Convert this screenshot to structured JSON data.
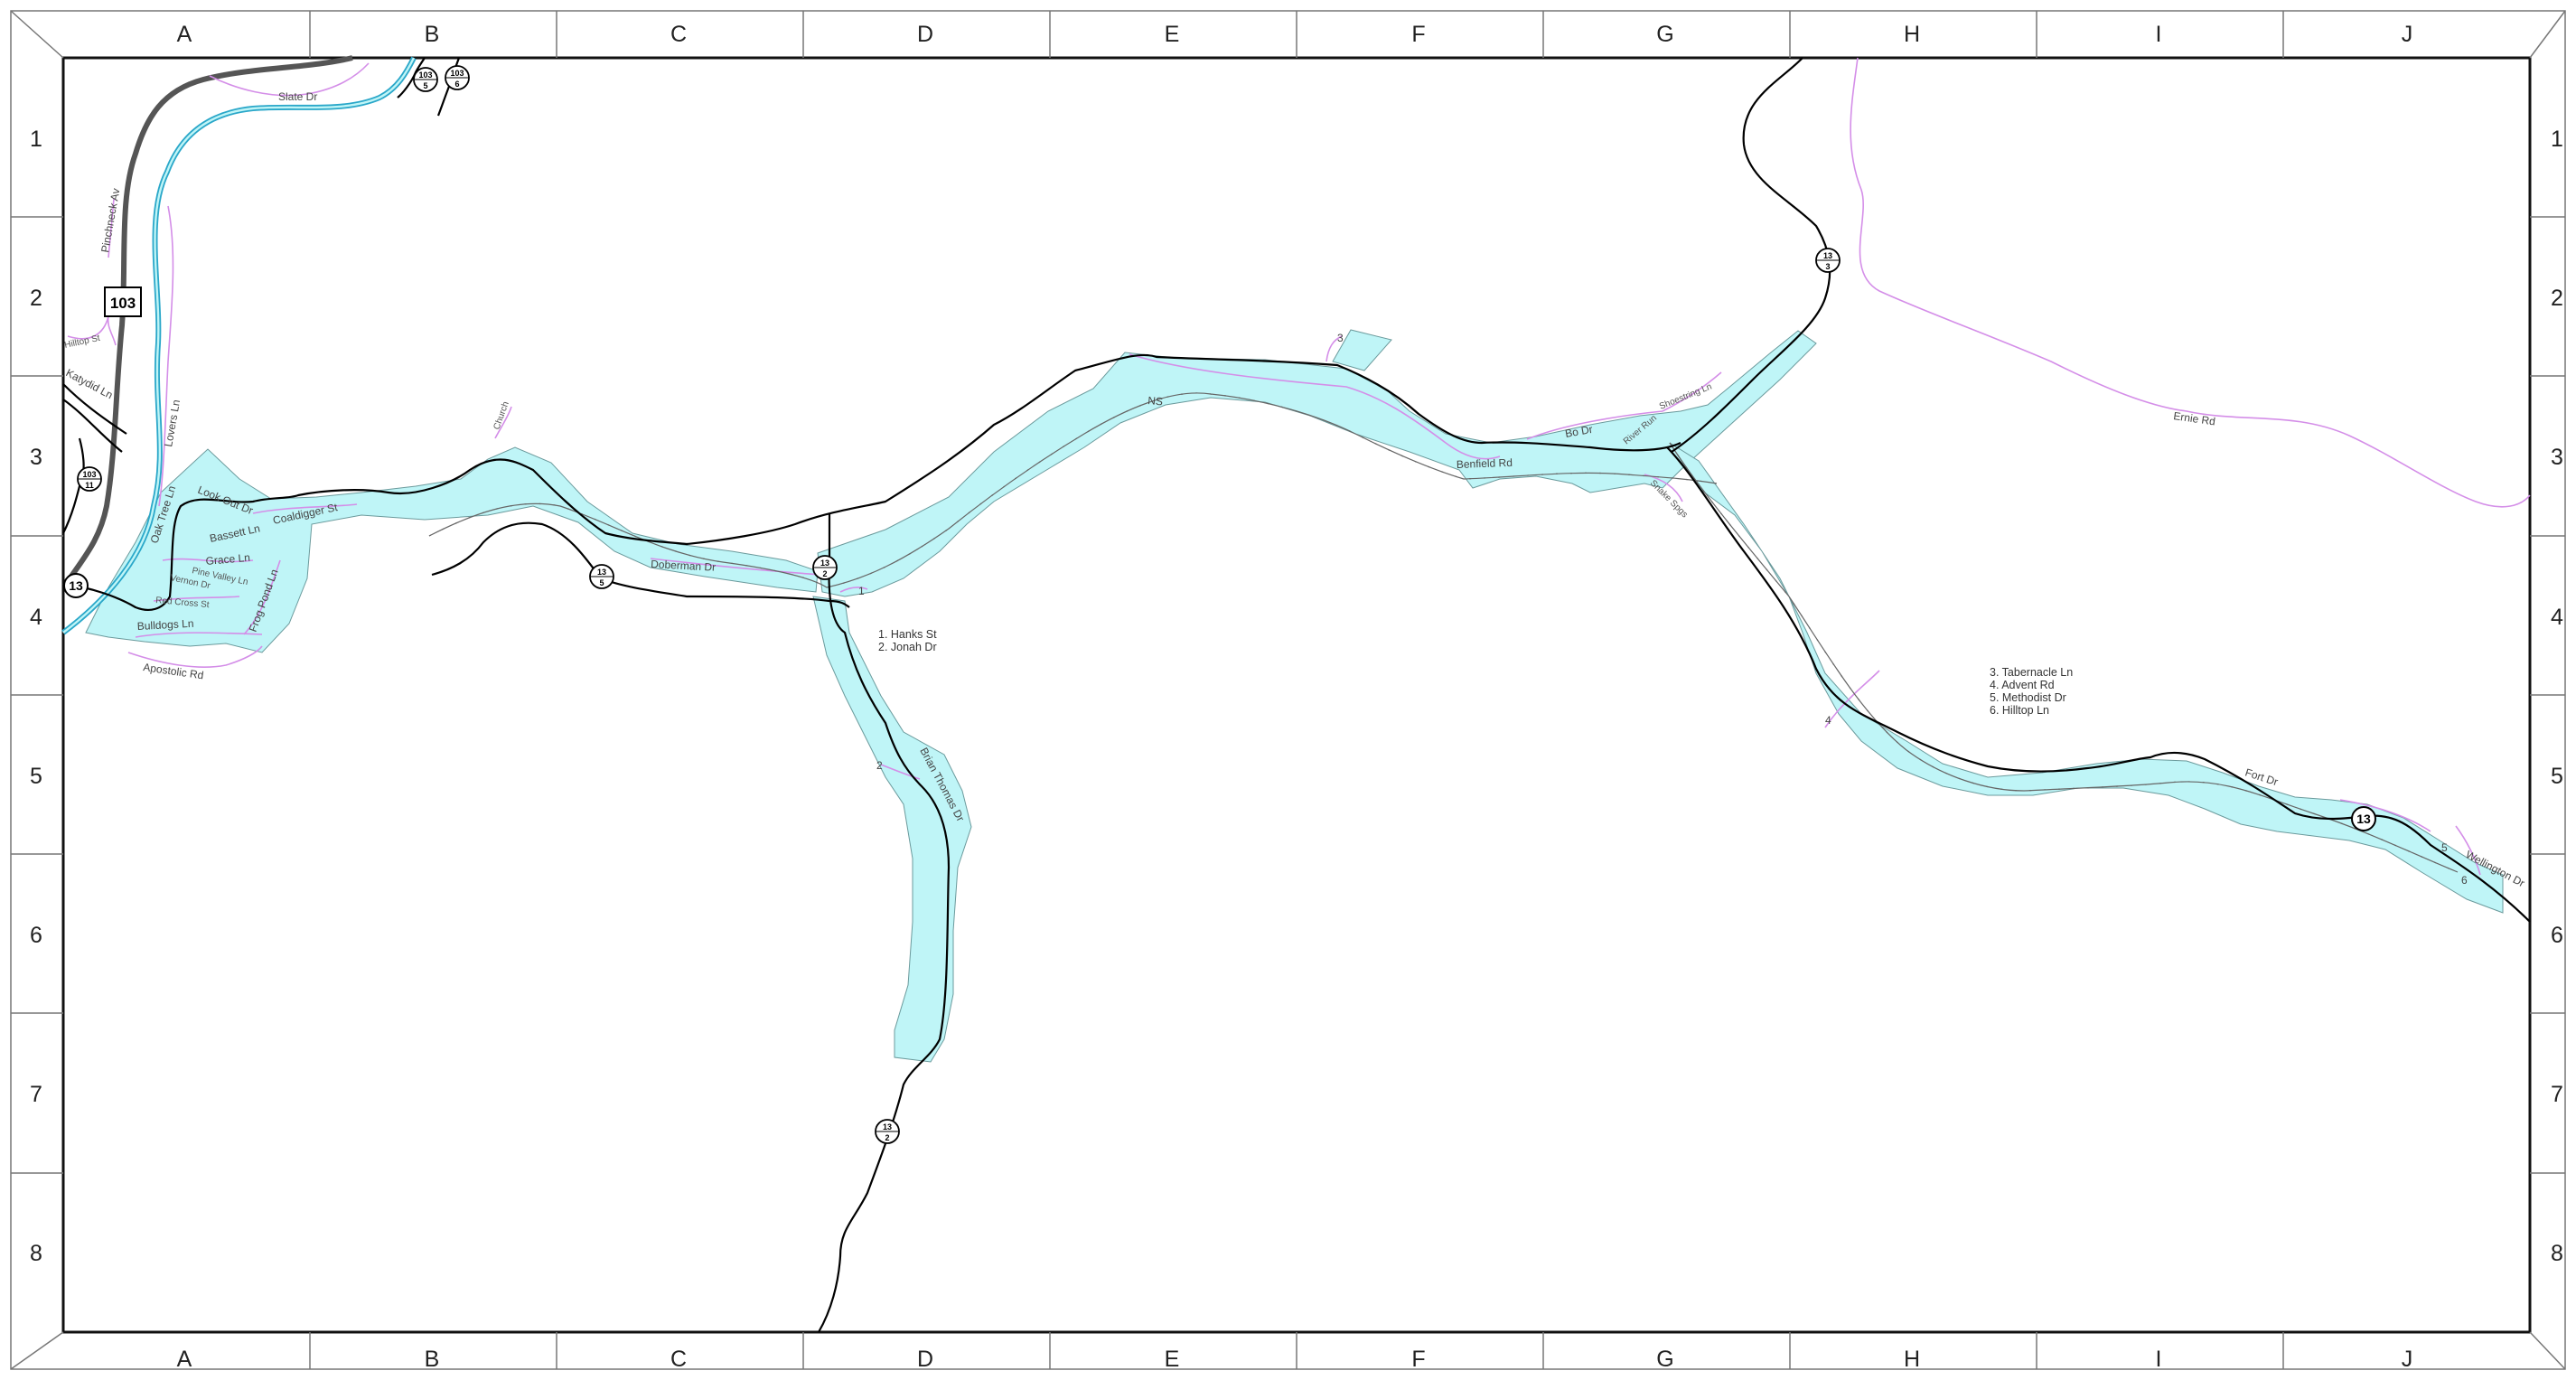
{
  "grid": {
    "columns": [
      "A",
      "B",
      "C",
      "D",
      "E",
      "F",
      "G",
      "H",
      "I",
      "J"
    ],
    "rows": [
      "1",
      "2",
      "3",
      "4",
      "5",
      "6",
      "7",
      "8"
    ]
  },
  "colors": {
    "floodplain": "#bff5f7",
    "minor_road": "#d48ee8",
    "river": "#2aa7c9",
    "road": "#000000"
  },
  "roads": {
    "slate": "Slate Dr",
    "pinchneck": "Pinchneck Av",
    "hilltop_st": "Hilltop St",
    "katydid": "Katydid Ln",
    "lovers": "Lovers Ln",
    "look_out": "Look Out Dr",
    "oak_tree": "Oak Tree Ln",
    "bassett": "Bassett Ln",
    "coaldigger": "Coaldigger St",
    "grace": "Grace Ln",
    "pine_valley": "Pine Valley Ln",
    "vernon": "Vernon Dr",
    "red_cross": "Red Cross St",
    "frog_pond": "Frog Pond Ln",
    "bulldogs": "Bulldogs Ln",
    "apostolic": "Apostolic Rd",
    "doberman": "Doberman Dr",
    "ns": "NS",
    "benfield": "Benfield Rd",
    "bo": "Bo Dr",
    "shoestring": "Shoestring Ln",
    "river_run": "River Run",
    "snake": "Snake Spgs",
    "ernie": "Ernie Rd",
    "brian_thomas": "Brian Thomas Dr",
    "fort": "Fort Dr",
    "wellington": "Wellington Dr",
    "church": "Church"
  },
  "callouts": [
    "1",
    "2",
    "3",
    "4",
    "5",
    "6"
  ],
  "legend_1": [
    "1.  Hanks St",
    "2.  Jonah Dr"
  ],
  "legend_2": [
    "3.  Tabernacle Ln",
    "4.  Advent Rd",
    "5.  Methodist Dr",
    "6.  Hilltop Ln"
  ],
  "shields": {
    "us103": "103",
    "sr13": "13",
    "c103_5": [
      "103",
      "5"
    ],
    "c103_6": [
      "103",
      "6"
    ],
    "c103_11": [
      "103",
      "11"
    ],
    "c13_5": [
      "13",
      "5"
    ],
    "c13_2a": [
      "13",
      "2"
    ],
    "c13_2b": [
      "13",
      "2"
    ],
    "c13_3": [
      "13",
      "3"
    ]
  }
}
